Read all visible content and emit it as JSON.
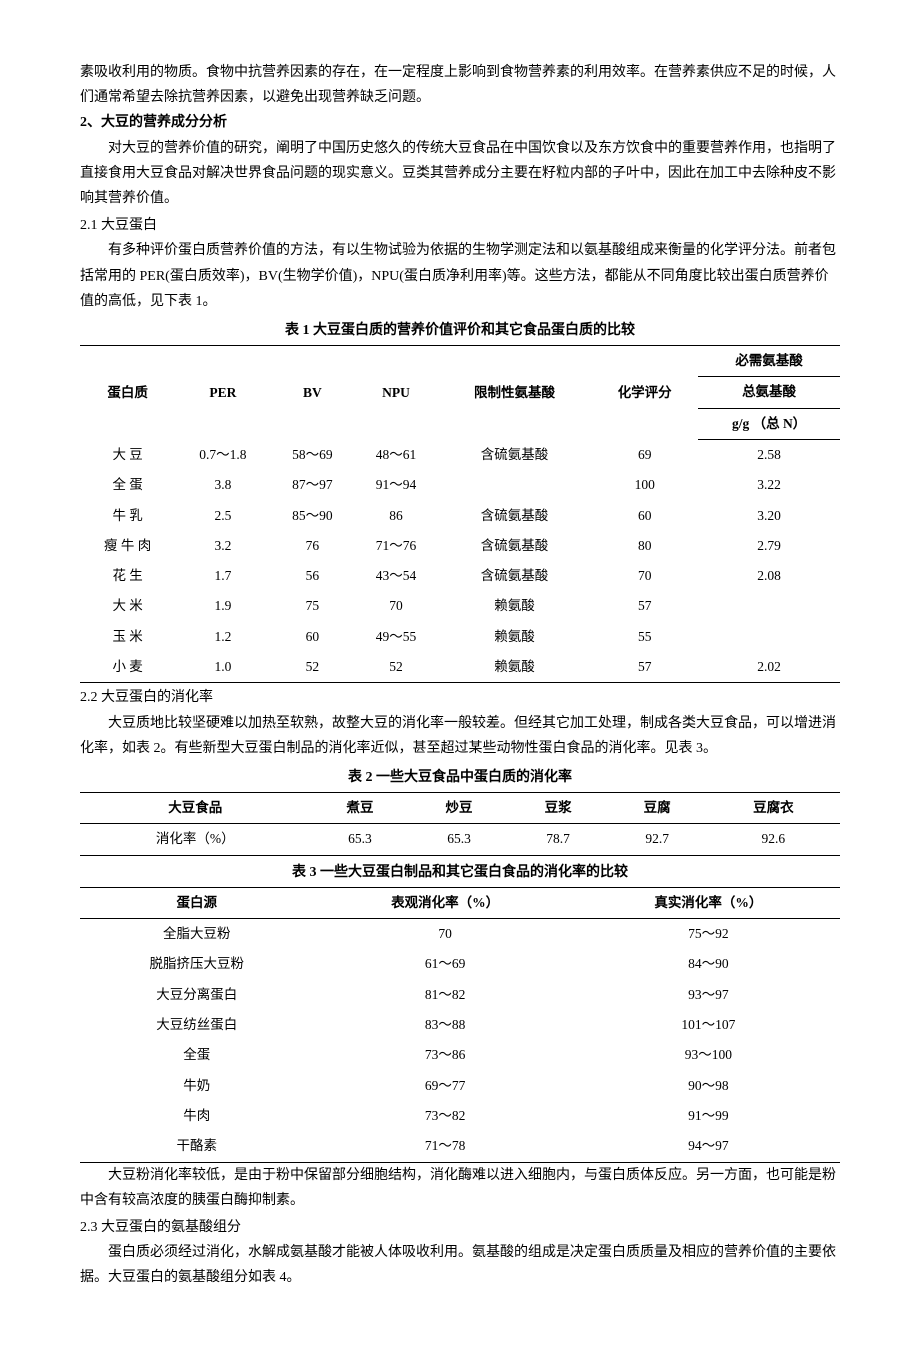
{
  "para1": "素吸收利用的物质。食物中抗营养因素的存在，在一定程度上影响到食物营养素的利用效率。在营养素供应不足的时候，人们通常希望去除抗营养因素，以避免出现营养缺乏问题。",
  "h2": "2、大豆的营养成分分析",
  "para2a": "对大豆的营养价值的研究，阐明了中国历史悠久的传统大豆食品在中国饮食以及东方饮食中的重要营养作用，也指明了直接食用大豆食品对解决世界食品问题的现实意义。豆类其营养成分主要在籽粒内部的子叶中，因此在加工中去除种皮不影响其营养价值。",
  "s21": "2.1 大豆蛋白",
  "para21": "有多种评价蛋白质营养价值的方法，有以生物试验为依据的生物学测定法和以氨基酸组成来衡量的化学评分法。前者包括常用的 PER(蛋白质效率)，BV(生物学价值)，NPU(蛋白质净利用率)等。这些方法，都能从不同角度比较出蛋白质营养价值的高低，见下表 1。",
  "t1": {
    "title": "表 1  大豆蛋白质的营养价值评价和其它食品蛋白质的比较",
    "head": {
      "c1": "蛋白质",
      "c2": "PER",
      "c3": "BV",
      "c4": "NPU",
      "c5": "限制性氨基酸",
      "c6": "化学评分",
      "c7a": "必需氨基酸",
      "c7b": "总氨基酸",
      "c7c": "g/g （总 N）"
    },
    "rows": [
      {
        "n": "大 豆",
        "per": "0.7～1.8",
        "bv": "58～69",
        "npu": "48～61",
        "lim": "含硫氨基酸",
        "cs": "69",
        "aa": "2.58"
      },
      {
        "n": "全 蛋",
        "per": "3.8",
        "bv": "87～97",
        "npu": "91～94",
        "lim": "",
        "cs": "100",
        "aa": "3.22"
      },
      {
        "n": "牛 乳",
        "per": "2.5",
        "bv": "85～90",
        "npu": "86",
        "lim": "含硫氨基酸",
        "cs": "60",
        "aa": "3.20"
      },
      {
        "n": "瘦 牛 肉",
        "per": "3.2",
        "bv": "76",
        "npu": "71～76",
        "lim": "含硫氨基酸",
        "cs": "80",
        "aa": "2.79"
      },
      {
        "n": "花 生",
        "per": "1.7",
        "bv": "56",
        "npu": "43～54",
        "lim": "含硫氨基酸",
        "cs": "70",
        "aa": "2.08"
      },
      {
        "n": "大 米",
        "per": "1.9",
        "bv": "75",
        "npu": "70",
        "lim": "赖氨酸",
        "cs": "57",
        "aa": ""
      },
      {
        "n": "玉 米",
        "per": "1.2",
        "bv": "60",
        "npu": "49～55",
        "lim": "赖氨酸",
        "cs": "55",
        "aa": ""
      },
      {
        "n": "小 麦",
        "per": "1.0",
        "bv": "52",
        "npu": "52",
        "lim": "赖氨酸",
        "cs": "57",
        "aa": "2.02"
      }
    ]
  },
  "s22": "2.2 大豆蛋白的消化率",
  "para22": "大豆质地比较坚硬难以加热至软熟，故整大豆的消化率一般较差。但经其它加工处理，制成各类大豆食品，可以增进消化率，如表 2。有些新型大豆蛋白制品的消化率近似，甚至超过某些动物性蛋白食品的消化率。见表 3。",
  "t2": {
    "title": "表 2  一些大豆食品中蛋白质的消化率",
    "head": {
      "c1": "大豆食品",
      "c2": "煮豆",
      "c3": "炒豆",
      "c4": "豆浆",
      "c5": "豆腐",
      "c6": "豆腐衣"
    },
    "row": {
      "label": "消化率（%）",
      "v": [
        "65.3",
        "65.3",
        "78.7",
        "92.7",
        "92.6"
      ]
    }
  },
  "t3": {
    "title": "表 3  一些大豆蛋白制品和其它蛋白食品的消化率的比较",
    "head": {
      "c1": "蛋白源",
      "c2": "表观消化率（%）",
      "c3": "真实消化率（%）"
    },
    "rows": [
      {
        "n": "全脂大豆粉",
        "a": "70",
        "b": "75～92"
      },
      {
        "n": "脱脂挤压大豆粉",
        "a": "61～69",
        "b": "84～90"
      },
      {
        "n": "大豆分离蛋白",
        "a": "81～82",
        "b": "93～97"
      },
      {
        "n": "大豆纺丝蛋白",
        "a": "83～88",
        "b": "101～107"
      },
      {
        "n": "全蛋",
        "a": "73～86",
        "b": "93～100"
      },
      {
        "n": "牛奶",
        "a": "69～77",
        "b": "90～98"
      },
      {
        "n": "牛肉",
        "a": "73～82",
        "b": "91～99"
      },
      {
        "n": "干酪素",
        "a": "71～78",
        "b": "94～97"
      }
    ]
  },
  "para_after_t3": "大豆粉消化率较低，是由于粉中保留部分细胞结构，消化酶难以进入细胞内，与蛋白质体反应。另一方面，也可能是粉中含有较高浓度的胰蛋白酶抑制素。",
  "s23": "2.3 大豆蛋白的氨基酸组分",
  "para23": "蛋白质必须经过消化，水解成氨基酸才能被人体吸收利用。氨基酸的组成是决定蛋白质质量及相应的营养价值的主要依据。大豆蛋白的氨基酸组分如表 4。"
}
